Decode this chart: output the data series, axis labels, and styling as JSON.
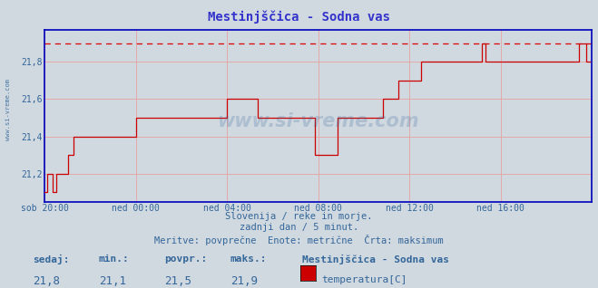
{
  "title": "Mestinjščica - Sodna vas",
  "background_color": "#d0d8e0",
  "plot_bg_color": "#d0d8e0",
  "line_color": "#cc0000",
  "dashed_line_color": "#dd0000",
  "grid_color": "#e8a0a0",
  "axis_color": "#0000bb",
  "text_color": "#336699",
  "title_color": "#3333cc",
  "ylim": [
    21.05,
    21.97
  ],
  "yticks": [
    21.2,
    21.4,
    21.6,
    21.8
  ],
  "xlabels": [
    "sob 20:00",
    "ned 00:00",
    "ned 04:00",
    "ned 08:00",
    "ned 12:00",
    "ned 16:00"
  ],
  "xtick_positions": [
    0,
    48,
    96,
    144,
    192,
    240
  ],
  "total_points": 288,
  "max_value": 21.9,
  "subtitle1": "Slovenija / reke in morje.",
  "subtitle2": "zadnji dan / 5 minut.",
  "subtitle3": "Meritve: povprečne  Enote: metrične  Črta: maksimum",
  "footer_labels": [
    "sedaj:",
    "min.:",
    "povpr.:",
    "maks.:"
  ],
  "footer_values": [
    "21,8",
    "21,1",
    "21,5",
    "21,9"
  ],
  "legend_title": "Mestinjščica - Sodna vas",
  "legend_item": "temperatura[C]",
  "legend_color": "#cc0000",
  "watermark": "www.si-vreme.com",
  "side_text": "www.si-vreme.com",
  "temperature_data": [
    21.1,
    21.2,
    21.2,
    21.2,
    21.1,
    21.1,
    21.2,
    21.2,
    21.2,
    21.2,
    21.2,
    21.2,
    21.3,
    21.3,
    21.3,
    21.4,
    21.4,
    21.4,
    21.4,
    21.4,
    21.4,
    21.4,
    21.4,
    21.4,
    21.4,
    21.4,
    21.4,
    21.4,
    21.4,
    21.4,
    21.4,
    21.4,
    21.4,
    21.4,
    21.4,
    21.4,
    21.4,
    21.4,
    21.4,
    21.4,
    21.4,
    21.4,
    21.4,
    21.4,
    21.4,
    21.4,
    21.4,
    21.4,
    21.5,
    21.5,
    21.5,
    21.5,
    21.5,
    21.5,
    21.5,
    21.5,
    21.5,
    21.5,
    21.5,
    21.5,
    21.5,
    21.5,
    21.5,
    21.5,
    21.5,
    21.5,
    21.5,
    21.5,
    21.5,
    21.5,
    21.5,
    21.5,
    21.5,
    21.5,
    21.5,
    21.5,
    21.5,
    21.5,
    21.5,
    21.5,
    21.5,
    21.5,
    21.5,
    21.5,
    21.5,
    21.5,
    21.5,
    21.5,
    21.5,
    21.5,
    21.5,
    21.5,
    21.5,
    21.5,
    21.5,
    21.5,
    21.6,
    21.6,
    21.6,
    21.6,
    21.6,
    21.6,
    21.6,
    21.6,
    21.6,
    21.6,
    21.6,
    21.6,
    21.6,
    21.6,
    21.6,
    21.6,
    21.5,
    21.5,
    21.5,
    21.5,
    21.5,
    21.5,
    21.5,
    21.5,
    21.5,
    21.5,
    21.5,
    21.5,
    21.5,
    21.5,
    21.5,
    21.5,
    21.5,
    21.5,
    21.5,
    21.5,
    21.5,
    21.5,
    21.5,
    21.5,
    21.5,
    21.5,
    21.5,
    21.5,
    21.5,
    21.5,
    21.3,
    21.3,
    21.3,
    21.3,
    21.3,
    21.3,
    21.3,
    21.3,
    21.3,
    21.3,
    21.3,
    21.3,
    21.5,
    21.5,
    21.5,
    21.5,
    21.5,
    21.5,
    21.5,
    21.5,
    21.5,
    21.5,
    21.5,
    21.5,
    21.5,
    21.5,
    21.5,
    21.5,
    21.5,
    21.5,
    21.5,
    21.5,
    21.5,
    21.5,
    21.5,
    21.5,
    21.6,
    21.6,
    21.6,
    21.6,
    21.6,
    21.6,
    21.6,
    21.6,
    21.7,
    21.7,
    21.7,
    21.7,
    21.7,
    21.7,
    21.7,
    21.7,
    21.7,
    21.7,
    21.7,
    21.7,
    21.8,
    21.8,
    21.8,
    21.8,
    21.8,
    21.8,
    21.8,
    21.8,
    21.8,
    21.8,
    21.8,
    21.8,
    21.8,
    21.8,
    21.8,
    21.8,
    21.8,
    21.8,
    21.8,
    21.8,
    21.8,
    21.8,
    21.8,
    21.8,
    21.8,
    21.8,
    21.8,
    21.8,
    21.8,
    21.8,
    21.8,
    21.8,
    21.9,
    21.9,
    21.8,
    21.8,
    21.8,
    21.8,
    21.8,
    21.8,
    21.8,
    21.8,
    21.8,
    21.8,
    21.8,
    21.8,
    21.8,
    21.8,
    21.8,
    21.8,
    21.8,
    21.8,
    21.8,
    21.8,
    21.8,
    21.8,
    21.8,
    21.8,
    21.8,
    21.8,
    21.8,
    21.8,
    21.8,
    21.8,
    21.8,
    21.8,
    21.8,
    21.8,
    21.8,
    21.8,
    21.8,
    21.8,
    21.8,
    21.8,
    21.8,
    21.8,
    21.8,
    21.8,
    21.8,
    21.8,
    21.8,
    21.8,
    21.8,
    21.9,
    21.9,
    21.9,
    21.9,
    21.8,
    21.8,
    21.8
  ]
}
